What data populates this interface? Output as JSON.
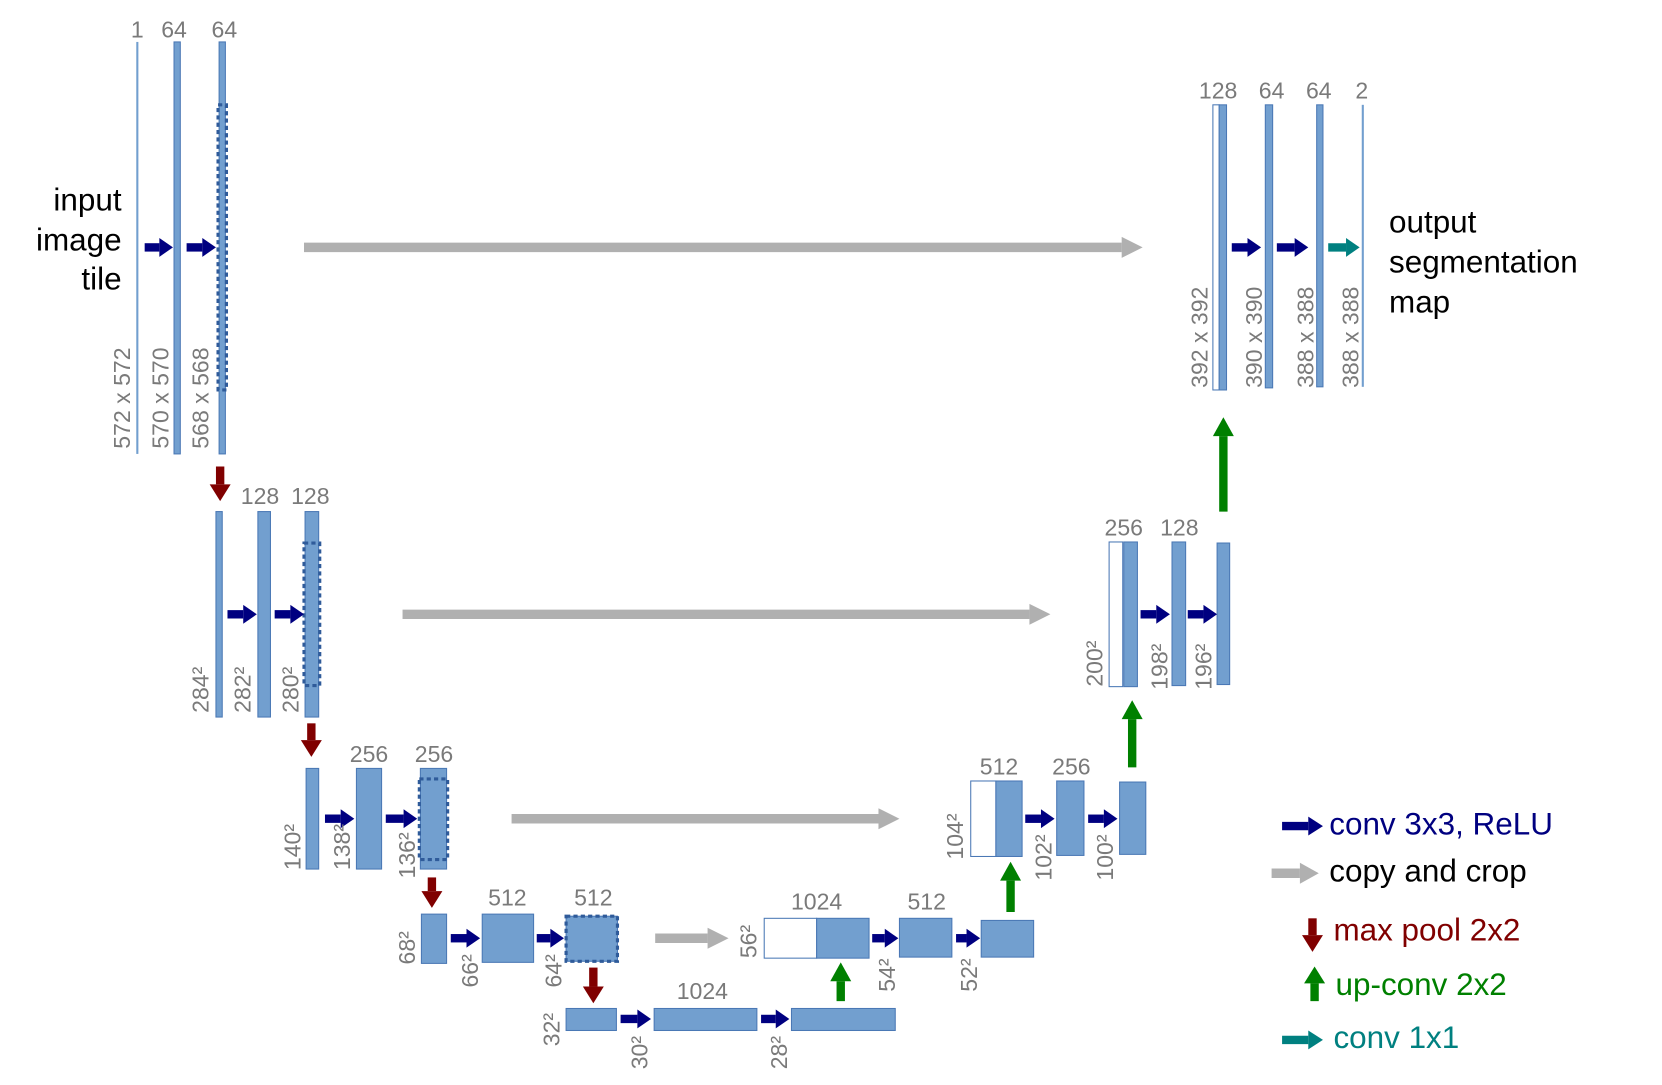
{
  "input_label": [
    "input",
    "image",
    "tile"
  ],
  "output_label": [
    "output",
    "segmentation",
    "map"
  ],
  "channels": [
    "1",
    "64",
    "64",
    "128",
    "128",
    "256",
    "256",
    "512",
    "512",
    "1024",
    "1024",
    "512",
    "512",
    "256",
    "256",
    "128",
    "128",
    "64",
    "64",
    "2"
  ],
  "sizes": [
    "572 x 572",
    "570 x 570",
    "568 x 568",
    "284²",
    "282²",
    "280²",
    "140²",
    "138²",
    "136²",
    "68²",
    "66²",
    "64²",
    "32²",
    "30²",
    "28²",
    "56²",
    "54²",
    "52²",
    "104²",
    "102²",
    "100²",
    "200²",
    "198²",
    "196²",
    "392 x 392",
    "390 x 390",
    "388 x 388",
    "388 x 388"
  ],
  "legend": [
    "conv 3x3, ReLU",
    "copy and crop",
    "max pool 2x2",
    "up-conv 2x2",
    "conv 1x1"
  ]
}
